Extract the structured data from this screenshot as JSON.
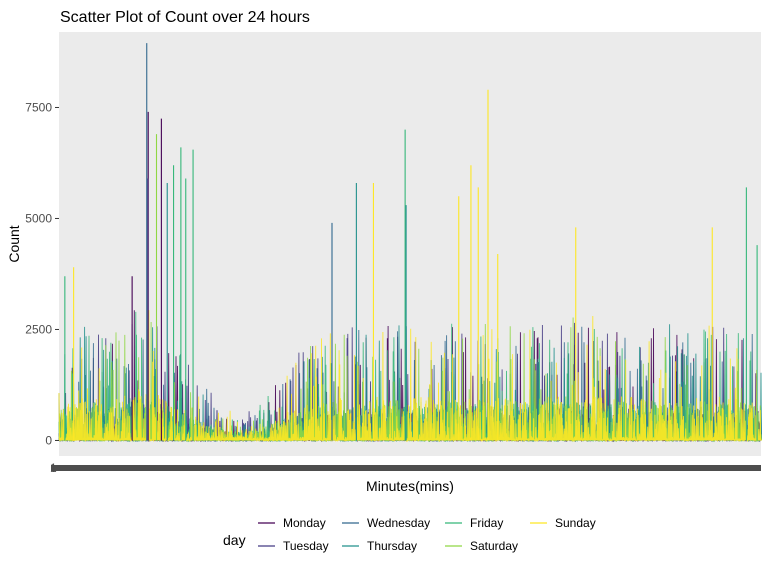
{
  "chart_data": {
    "type": "line",
    "title": "Scatter Plot of Count over 24 hours",
    "xlabel": "Minutes(mins)",
    "ylabel": "Count",
    "ylim": [
      -350,
      9200
    ],
    "y_ticks": [
      0,
      2500,
      5000,
      7500
    ],
    "y_tick_labels": [
      "0",
      "2500",
      "5000",
      "7500"
    ],
    "x_range": [
      0,
      1440
    ],
    "x_tick_labels_overplotted": "1",
    "grid": false,
    "background": "#EBEBEB",
    "legend": {
      "title": "day",
      "position": "bottom",
      "entries": [
        {
          "name": "Monday",
          "color": "#440154"
        },
        {
          "name": "Tuesday",
          "color": "#443A83"
        },
        {
          "name": "Wednesday",
          "color": "#31688E"
        },
        {
          "name": "Thursday",
          "color": "#21908C"
        },
        {
          "name": "Friday",
          "color": "#35B779"
        },
        {
          "name": "Saturday",
          "color": "#8FD744"
        },
        {
          "name": "Sunday",
          "color": "#FDE725"
        }
      ]
    },
    "series_profile": {
      "description_units": "minute of day vs count",
      "baseline_envelope": [
        [
          0,
          900
        ],
        [
          60,
          1100
        ],
        [
          120,
          1100
        ],
        [
          160,
          1300
        ],
        [
          200,
          1200
        ],
        [
          240,
          900
        ],
        [
          300,
          500
        ],
        [
          360,
          250
        ],
        [
          420,
          350
        ],
        [
          480,
          800
        ],
        [
          540,
          1000
        ],
        [
          600,
          1100
        ],
        [
          660,
          1100
        ],
        [
          720,
          1100
        ],
        [
          780,
          1100
        ],
        [
          840,
          1100
        ],
        [
          900,
          1100
        ],
        [
          960,
          1100
        ],
        [
          1020,
          1200
        ],
        [
          1080,
          1200
        ],
        [
          1140,
          1100
        ],
        [
          1200,
          1100
        ],
        [
          1260,
          1100
        ],
        [
          1320,
          1100
        ],
        [
          1380,
          1100
        ],
        [
          1440,
          1100
        ]
      ],
      "peaks": [
        {
          "x": 180,
          "y": 8950,
          "day": "Wednesday"
        },
        {
          "x": 183,
          "y": 7400,
          "day": "Monday"
        },
        {
          "x": 182,
          "y": 5900,
          "day": "Tuesday"
        },
        {
          "x": 210,
          "y": 7250,
          "day": "Monday"
        },
        {
          "x": 200,
          "y": 6900,
          "day": "Saturday"
        },
        {
          "x": 250,
          "y": 6600,
          "day": "Friday"
        },
        {
          "x": 235,
          "y": 6200,
          "day": "Friday"
        },
        {
          "x": 222,
          "y": 5800,
          "day": "Thursday"
        },
        {
          "x": 260,
          "y": 5900,
          "day": "Friday"
        },
        {
          "x": 275,
          "y": 6550,
          "day": "Friday"
        },
        {
          "x": 30,
          "y": 3900,
          "day": "Sunday"
        },
        {
          "x": 12,
          "y": 3700,
          "day": "Friday"
        },
        {
          "x": 150,
          "y": 3700,
          "day": "Monday"
        },
        {
          "x": 560,
          "y": 4900,
          "day": "Wednesday"
        },
        {
          "x": 610,
          "y": 5800,
          "day": "Thursday"
        },
        {
          "x": 645,
          "y": 5800,
          "day": "Sunday"
        },
        {
          "x": 710,
          "y": 7000,
          "day": "Friday"
        },
        {
          "x": 712,
          "y": 5300,
          "day": "Thursday"
        },
        {
          "x": 820,
          "y": 5500,
          "day": "Sunday"
        },
        {
          "x": 845,
          "y": 6200,
          "day": "Sunday"
        },
        {
          "x": 860,
          "y": 5700,
          "day": "Sunday"
        },
        {
          "x": 880,
          "y": 7900,
          "day": "Sunday"
        },
        {
          "x": 900,
          "y": 4200,
          "day": "Sunday"
        },
        {
          "x": 1340,
          "y": 4800,
          "day": "Sunday"
        },
        {
          "x": 1410,
          "y": 5700,
          "day": "Friday"
        },
        {
          "x": 1432,
          "y": 4400,
          "day": "Friday"
        },
        {
          "x": 1060,
          "y": 4800,
          "day": "Sunday"
        }
      ]
    }
  }
}
